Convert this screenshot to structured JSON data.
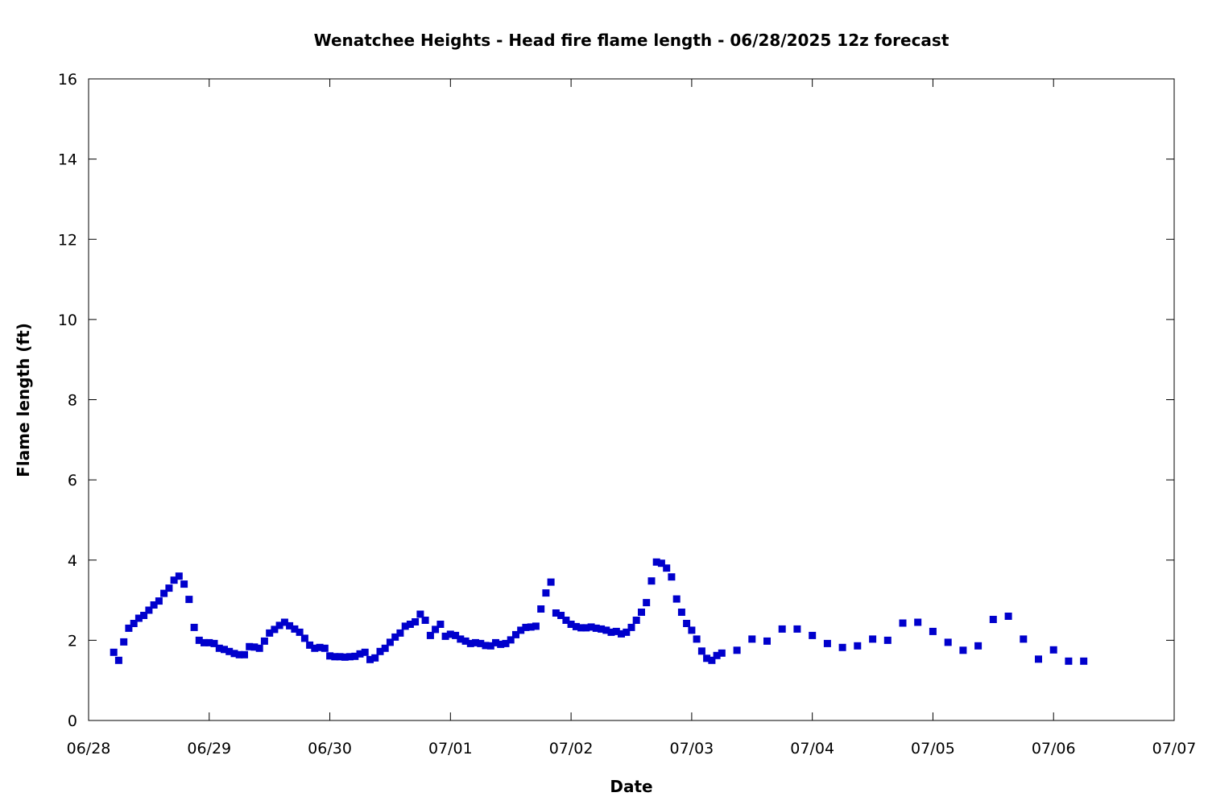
{
  "chart_data": {
    "type": "scatter",
    "title": "Wenatchee Heights - Head fire flame length - 06/28/2025 12z forecast",
    "xlabel": "Date",
    "ylabel": "Flame length (ft)",
    "x_unit": "hours after 06/28 00:00",
    "xlim": [
      "06/28",
      "07/07"
    ],
    "ylim": [
      0,
      16
    ],
    "x_ticks": [
      "06/28",
      "06/29",
      "06/30",
      "07/01",
      "07/02",
      "07/03",
      "07/04",
      "07/05",
      "07/06",
      "07/07"
    ],
    "y_ticks": [
      "0",
      "2",
      "4",
      "6",
      "8",
      "10",
      "12",
      "14",
      "16"
    ],
    "grid": false,
    "marker": "square",
    "color": "#0000cc",
    "series": [
      {
        "name": "",
        "points": [
          [
            5,
            1.7
          ],
          [
            6,
            1.5
          ],
          [
            7,
            1.96
          ],
          [
            8,
            2.3
          ],
          [
            9,
            2.42
          ],
          [
            10,
            2.55
          ],
          [
            11,
            2.62
          ],
          [
            12,
            2.75
          ],
          [
            13,
            2.88
          ],
          [
            14,
            2.98
          ],
          [
            15,
            3.17
          ],
          [
            16,
            3.3
          ],
          [
            17,
            3.5
          ],
          [
            18,
            3.6
          ],
          [
            19,
            3.4
          ],
          [
            20,
            3.02
          ],
          [
            21,
            2.32
          ],
          [
            22,
            2.0
          ],
          [
            23,
            1.94
          ],
          [
            24,
            1.94
          ],
          [
            25,
            1.92
          ],
          [
            26,
            1.8
          ],
          [
            27,
            1.77
          ],
          [
            28,
            1.72
          ],
          [
            29,
            1.67
          ],
          [
            30,
            1.64
          ],
          [
            31,
            1.64
          ],
          [
            32,
            1.84
          ],
          [
            33,
            1.83
          ],
          [
            34,
            1.8
          ],
          [
            35,
            1.98
          ],
          [
            36,
            2.18
          ],
          [
            37,
            2.27
          ],
          [
            38,
            2.37
          ],
          [
            39,
            2.45
          ],
          [
            40,
            2.36
          ],
          [
            41,
            2.28
          ],
          [
            42,
            2.2
          ],
          [
            43,
            2.05
          ],
          [
            44,
            1.88
          ],
          [
            45,
            1.8
          ],
          [
            46,
            1.82
          ],
          [
            47,
            1.8
          ],
          [
            48,
            1.61
          ],
          [
            49,
            1.59
          ],
          [
            50,
            1.59
          ],
          [
            51,
            1.58
          ],
          [
            52,
            1.59
          ],
          [
            53,
            1.6
          ],
          [
            54,
            1.66
          ],
          [
            55,
            1.7
          ],
          [
            56,
            1.52
          ],
          [
            57,
            1.56
          ],
          [
            58,
            1.72
          ],
          [
            59,
            1.8
          ],
          [
            60,
            1.95
          ],
          [
            61,
            2.08
          ],
          [
            62,
            2.18
          ],
          [
            63,
            2.35
          ],
          [
            64,
            2.4
          ],
          [
            65,
            2.46
          ],
          [
            66,
            2.65
          ],
          [
            67,
            2.5
          ],
          [
            68,
            2.12
          ],
          [
            69,
            2.27
          ],
          [
            70,
            2.4
          ],
          [
            71,
            2.1
          ],
          [
            72,
            2.15
          ],
          [
            73,
            2.12
          ],
          [
            74,
            2.03
          ],
          [
            75,
            1.98
          ],
          [
            76,
            1.92
          ],
          [
            77,
            1.94
          ],
          [
            78,
            1.92
          ],
          [
            79,
            1.87
          ],
          [
            80,
            1.86
          ],
          [
            81,
            1.94
          ],
          [
            82,
            1.9
          ],
          [
            83,
            1.92
          ],
          [
            84,
            2.01
          ],
          [
            85,
            2.14
          ],
          [
            86,
            2.25
          ],
          [
            87,
            2.32
          ],
          [
            88,
            2.33
          ],
          [
            89,
            2.35
          ],
          [
            90,
            2.78
          ],
          [
            91,
            3.18
          ],
          [
            92,
            3.45
          ],
          [
            93,
            2.68
          ],
          [
            94,
            2.62
          ],
          [
            95,
            2.5
          ],
          [
            96,
            2.4
          ],
          [
            97,
            2.34
          ],
          [
            98,
            2.31
          ],
          [
            99,
            2.31
          ],
          [
            100,
            2.33
          ],
          [
            101,
            2.3
          ],
          [
            102,
            2.28
          ],
          [
            103,
            2.25
          ],
          [
            104,
            2.2
          ],
          [
            105,
            2.22
          ],
          [
            106,
            2.16
          ],
          [
            107,
            2.2
          ],
          [
            108,
            2.32
          ],
          [
            109,
            2.5
          ],
          [
            110,
            2.7
          ],
          [
            111,
            2.94
          ],
          [
            112,
            3.48
          ],
          [
            113,
            3.95
          ],
          [
            114,
            3.92
          ],
          [
            115,
            3.8
          ],
          [
            116,
            3.58
          ],
          [
            117,
            3.03
          ],
          [
            118,
            2.7
          ],
          [
            119,
            2.42
          ],
          [
            120,
            2.25
          ],
          [
            121,
            2.03
          ],
          [
            122,
            1.73
          ],
          [
            123,
            1.55
          ],
          [
            124,
            1.5
          ],
          [
            125,
            1.62
          ],
          [
            126,
            1.68
          ],
          [
            129,
            1.75
          ],
          [
            132,
            2.03
          ],
          [
            135,
            1.98
          ],
          [
            138,
            2.28
          ],
          [
            141,
            2.28
          ],
          [
            144,
            2.12
          ],
          [
            147,
            1.92
          ],
          [
            150,
            1.82
          ],
          [
            153,
            1.86
          ],
          [
            156,
            2.03
          ],
          [
            159,
            2.0
          ],
          [
            162,
            2.43
          ],
          [
            165,
            2.45
          ],
          [
            168,
            2.22
          ],
          [
            171,
            1.95
          ],
          [
            174,
            1.75
          ],
          [
            177,
            1.86
          ],
          [
            180,
            2.52
          ],
          [
            183,
            2.6
          ],
          [
            186,
            2.03
          ],
          [
            189,
            1.53
          ],
          [
            192,
            1.76
          ],
          [
            195,
            1.48
          ],
          [
            198,
            1.48
          ]
        ]
      }
    ]
  }
}
